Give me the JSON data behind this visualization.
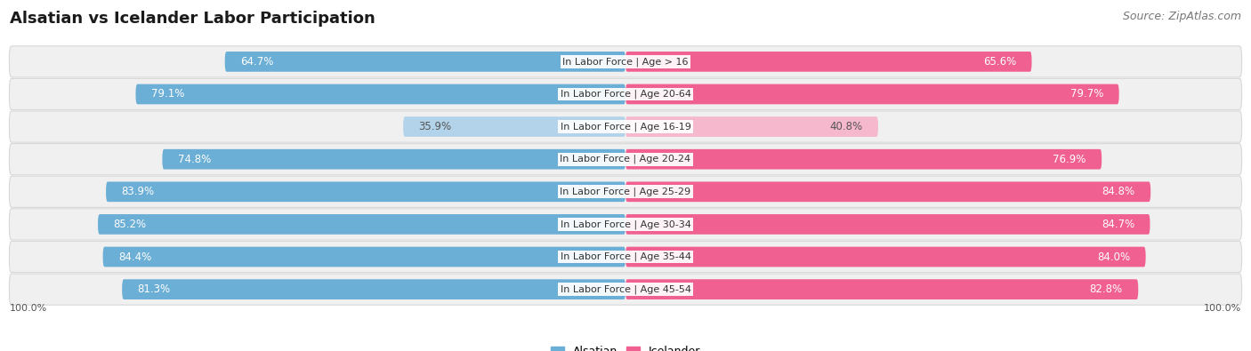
{
  "title": "Alsatian vs Icelander Labor Participation",
  "source": "Source: ZipAtlas.com",
  "categories": [
    "In Labor Force | Age > 16",
    "In Labor Force | Age 20-64",
    "In Labor Force | Age 16-19",
    "In Labor Force | Age 20-24",
    "In Labor Force | Age 25-29",
    "In Labor Force | Age 30-34",
    "In Labor Force | Age 35-44",
    "In Labor Force | Age 45-54"
  ],
  "alsatian_values": [
    64.7,
    79.1,
    35.9,
    74.8,
    83.9,
    85.2,
    84.4,
    81.3
  ],
  "icelander_values": [
    65.6,
    79.7,
    40.8,
    76.9,
    84.8,
    84.7,
    84.0,
    82.8
  ],
  "alsatian_color": "#6baed6",
  "alsatian_color_light": "#b3d3ea",
  "icelander_color": "#f06090",
  "icelander_color_light": "#f5b8cc",
  "row_bg_color": "#f0f0f0",
  "row_border_color": "#d8d8d8",
  "max_value": 100.0,
  "label_fontsize": 8.0,
  "title_fontsize": 13,
  "source_fontsize": 9,
  "legend_fontsize": 9,
  "val_label_fontsize": 8.5
}
